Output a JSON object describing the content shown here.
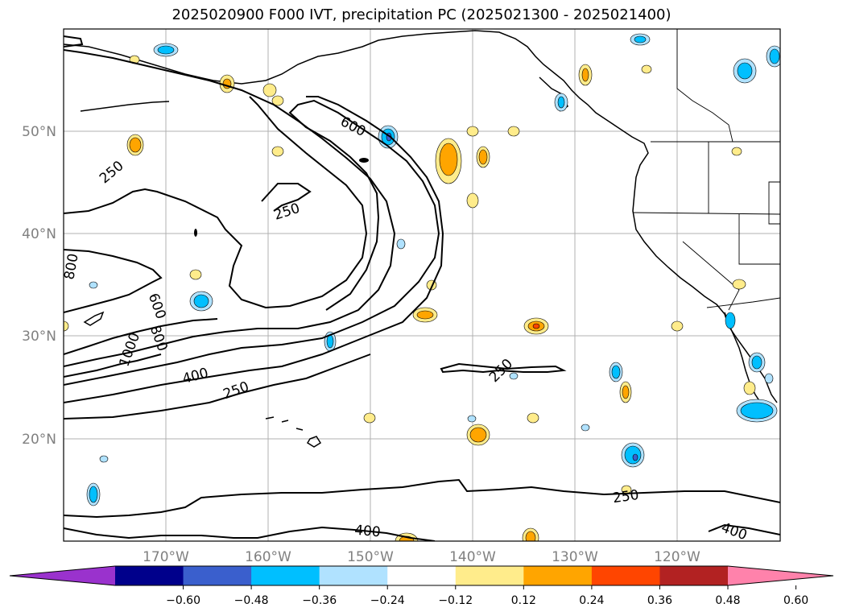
{
  "title": "2025020900 F000 IVT, precipitation PC (2025021300 - 2025021400)",
  "map": {
    "lon_ticks": [
      "170°W",
      "160°W",
      "150°W",
      "140°W",
      "130°W",
      "120°W"
    ],
    "lat_ticks": [
      "50°N",
      "40°N",
      "30°N",
      "20°N"
    ],
    "grid": true
  },
  "contour_labels": [
    {
      "text": "600"
    },
    {
      "text": "250"
    },
    {
      "text": "250"
    },
    {
      "text": "800"
    },
    {
      "text": "600"
    },
    {
      "text": "800"
    },
    {
      "text": "1000"
    },
    {
      "text": "400"
    },
    {
      "text": "250"
    },
    {
      "text": "250"
    },
    {
      "text": "250"
    },
    {
      "text": "400"
    },
    {
      "text": "400"
    }
  ],
  "colorbar": {
    "ticks": [
      "−0.60",
      "−0.48",
      "−0.36",
      "−0.24",
      "−0.12",
      "0.12",
      "0.24",
      "0.36",
      "0.48",
      "0.60"
    ],
    "colors": [
      "#9a32cd",
      "#00008b",
      "#3a5fcd",
      "#00bfff",
      "#b0e2ff",
      "#ffffff",
      "#ffec8b",
      "#ffa500",
      "#ff4500",
      "#b22222",
      "#ff82ab"
    ]
  }
}
